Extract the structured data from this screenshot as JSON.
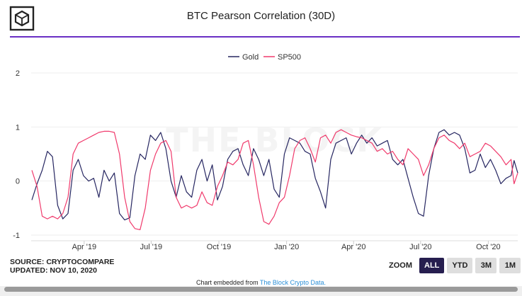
{
  "header": {
    "title": "BTC Pearson Correlation (30D)",
    "logo_icon": "the-block-cube-icon",
    "rule_color": "#6a2fc4"
  },
  "watermark": "THE BLOCK",
  "chart_data": {
    "type": "line",
    "title": "BTC Pearson Correlation (30D)",
    "xlabel": "",
    "ylabel": "",
    "ylim": [
      -1,
      2
    ],
    "yticks": [
      -1,
      0,
      1,
      2
    ],
    "x_range": [
      "2019-01-19",
      "2020-11-10"
    ],
    "xticks": [
      {
        "label": "Apr '19",
        "date": "2019-04-01"
      },
      {
        "label": "Jul '19",
        "date": "2019-07-01"
      },
      {
        "label": "Oct '19",
        "date": "2019-10-01"
      },
      {
        "label": "Jan '20",
        "date": "2020-01-01"
      },
      {
        "label": "Apr '20",
        "date": "2020-04-01"
      },
      {
        "label": "Jul '20",
        "date": "2020-07-01"
      },
      {
        "label": "Oct '20",
        "date": "2020-10-01"
      }
    ],
    "grid": true,
    "legend_position": "top-center",
    "series": [
      {
        "name": "Gold",
        "color": "#262661",
        "points": [
          [
            "2019-01-20",
            -0.35
          ],
          [
            "2019-01-27",
            -0.05
          ],
          [
            "2019-02-03",
            0.2
          ],
          [
            "2019-02-10",
            0.55
          ],
          [
            "2019-02-17",
            0.45
          ],
          [
            "2019-02-24",
            -0.45
          ],
          [
            "2019-03-03",
            -0.7
          ],
          [
            "2019-03-10",
            -0.6
          ],
          [
            "2019-03-17",
            0.2
          ],
          [
            "2019-03-24",
            0.4
          ],
          [
            "2019-03-31",
            0.1
          ],
          [
            "2019-04-07",
            0.0
          ],
          [
            "2019-04-14",
            0.05
          ],
          [
            "2019-04-21",
            -0.3
          ],
          [
            "2019-04-28",
            0.2
          ],
          [
            "2019-05-05",
            0.0
          ],
          [
            "2019-05-12",
            0.15
          ],
          [
            "2019-05-19",
            -0.6
          ],
          [
            "2019-05-26",
            -0.72
          ],
          [
            "2019-06-02",
            -0.68
          ],
          [
            "2019-06-09",
            0.1
          ],
          [
            "2019-06-16",
            0.5
          ],
          [
            "2019-06-23",
            0.4
          ],
          [
            "2019-06-30",
            0.85
          ],
          [
            "2019-07-07",
            0.75
          ],
          [
            "2019-07-14",
            0.9
          ],
          [
            "2019-07-21",
            0.6
          ],
          [
            "2019-07-28",
            0.0
          ],
          [
            "2019-08-04",
            -0.3
          ],
          [
            "2019-08-11",
            0.1
          ],
          [
            "2019-08-18",
            -0.2
          ],
          [
            "2019-08-25",
            -0.3
          ],
          [
            "2019-09-01",
            0.2
          ],
          [
            "2019-09-08",
            0.4
          ],
          [
            "2019-09-15",
            0.0
          ],
          [
            "2019-09-22",
            0.3
          ],
          [
            "2019-09-29",
            -0.35
          ],
          [
            "2019-10-06",
            -0.1
          ],
          [
            "2019-10-13",
            0.4
          ],
          [
            "2019-10-20",
            0.55
          ],
          [
            "2019-10-27",
            0.6
          ],
          [
            "2019-11-03",
            0.3
          ],
          [
            "2019-11-10",
            0.1
          ],
          [
            "2019-11-17",
            0.6
          ],
          [
            "2019-11-24",
            0.4
          ],
          [
            "2019-12-01",
            0.1
          ],
          [
            "2019-12-08",
            0.4
          ],
          [
            "2019-12-15",
            -0.15
          ],
          [
            "2019-12-22",
            -0.3
          ],
          [
            "2019-12-29",
            0.5
          ],
          [
            "2020-01-05",
            0.8
          ],
          [
            "2020-01-12",
            0.75
          ],
          [
            "2020-01-19",
            0.7
          ],
          [
            "2020-01-26",
            0.55
          ],
          [
            "2020-02-02",
            0.5
          ],
          [
            "2020-02-09",
            0.05
          ],
          [
            "2020-02-16",
            -0.2
          ],
          [
            "2020-02-23",
            -0.5
          ],
          [
            "2020-03-01",
            0.4
          ],
          [
            "2020-03-08",
            0.7
          ],
          [
            "2020-03-15",
            0.75
          ],
          [
            "2020-03-22",
            0.8
          ],
          [
            "2020-03-29",
            0.5
          ],
          [
            "2020-04-05",
            0.7
          ],
          [
            "2020-04-12",
            0.85
          ],
          [
            "2020-04-19",
            0.7
          ],
          [
            "2020-04-26",
            0.8
          ],
          [
            "2020-05-03",
            0.65
          ],
          [
            "2020-05-10",
            0.7
          ],
          [
            "2020-05-17",
            0.75
          ],
          [
            "2020-05-24",
            0.4
          ],
          [
            "2020-05-31",
            0.3
          ],
          [
            "2020-06-07",
            0.4
          ],
          [
            "2020-06-14",
            0.05
          ],
          [
            "2020-06-21",
            -0.3
          ],
          [
            "2020-06-28",
            -0.6
          ],
          [
            "2020-07-05",
            -0.65
          ],
          [
            "2020-07-12",
            0.1
          ],
          [
            "2020-07-19",
            0.6
          ],
          [
            "2020-07-26",
            0.9
          ],
          [
            "2020-08-02",
            0.95
          ],
          [
            "2020-08-09",
            0.85
          ],
          [
            "2020-08-16",
            0.9
          ],
          [
            "2020-08-23",
            0.85
          ],
          [
            "2020-08-30",
            0.6
          ],
          [
            "2020-09-06",
            0.15
          ],
          [
            "2020-09-13",
            0.2
          ],
          [
            "2020-09-20",
            0.5
          ],
          [
            "2020-09-27",
            0.25
          ],
          [
            "2020-10-04",
            0.4
          ],
          [
            "2020-10-11",
            0.2
          ],
          [
            "2020-10-18",
            -0.05
          ],
          [
            "2020-10-25",
            0.05
          ],
          [
            "2020-11-01",
            0.1
          ],
          [
            "2020-11-05",
            0.38
          ],
          [
            "2020-11-10",
            0.15
          ]
        ]
      },
      {
        "name": "SP500",
        "color": "#f03a6c",
        "points": [
          [
            "2019-01-20",
            0.2
          ],
          [
            "2019-01-27",
            -0.1
          ],
          [
            "2019-02-03",
            -0.65
          ],
          [
            "2019-02-10",
            -0.7
          ],
          [
            "2019-02-17",
            -0.65
          ],
          [
            "2019-02-24",
            -0.7
          ],
          [
            "2019-03-03",
            -0.6
          ],
          [
            "2019-03-10",
            -0.3
          ],
          [
            "2019-03-17",
            0.5
          ],
          [
            "2019-03-24",
            0.7
          ],
          [
            "2019-03-31",
            0.75
          ],
          [
            "2019-04-07",
            0.8
          ],
          [
            "2019-04-14",
            0.85
          ],
          [
            "2019-04-21",
            0.9
          ],
          [
            "2019-04-28",
            0.92
          ],
          [
            "2019-05-05",
            0.92
          ],
          [
            "2019-05-12",
            0.9
          ],
          [
            "2019-05-19",
            0.5
          ],
          [
            "2019-05-26",
            -0.3
          ],
          [
            "2019-06-02",
            -0.75
          ],
          [
            "2019-06-09",
            -0.88
          ],
          [
            "2019-06-16",
            -0.9
          ],
          [
            "2019-06-23",
            -0.5
          ],
          [
            "2019-06-30",
            0.2
          ],
          [
            "2019-07-07",
            0.5
          ],
          [
            "2019-07-14",
            0.7
          ],
          [
            "2019-07-21",
            0.75
          ],
          [
            "2019-07-28",
            0.55
          ],
          [
            "2019-08-04",
            -0.3
          ],
          [
            "2019-08-11",
            -0.5
          ],
          [
            "2019-08-18",
            -0.45
          ],
          [
            "2019-08-25",
            -0.5
          ],
          [
            "2019-09-01",
            -0.45
          ],
          [
            "2019-09-08",
            -0.2
          ],
          [
            "2019-09-15",
            -0.4
          ],
          [
            "2019-09-22",
            -0.45
          ],
          [
            "2019-09-29",
            -0.1
          ],
          [
            "2019-10-06",
            0.1
          ],
          [
            "2019-10-13",
            0.35
          ],
          [
            "2019-10-20",
            0.3
          ],
          [
            "2019-10-27",
            0.4
          ],
          [
            "2019-11-03",
            0.7
          ],
          [
            "2019-11-10",
            0.75
          ],
          [
            "2019-11-17",
            0.3
          ],
          [
            "2019-11-24",
            -0.3
          ],
          [
            "2019-12-01",
            -0.75
          ],
          [
            "2019-12-08",
            -0.8
          ],
          [
            "2019-12-15",
            -0.65
          ],
          [
            "2019-12-22",
            -0.4
          ],
          [
            "2019-12-29",
            -0.3
          ],
          [
            "2020-01-05",
            0.1
          ],
          [
            "2020-01-12",
            0.6
          ],
          [
            "2020-01-19",
            0.75
          ],
          [
            "2020-01-26",
            0.8
          ],
          [
            "2020-02-02",
            0.6
          ],
          [
            "2020-02-09",
            0.35
          ],
          [
            "2020-02-16",
            0.8
          ],
          [
            "2020-02-23",
            0.85
          ],
          [
            "2020-03-01",
            0.7
          ],
          [
            "2020-03-08",
            0.9
          ],
          [
            "2020-03-15",
            0.95
          ],
          [
            "2020-03-22",
            0.9
          ],
          [
            "2020-03-29",
            0.85
          ],
          [
            "2020-04-05",
            0.82
          ],
          [
            "2020-04-12",
            0.8
          ],
          [
            "2020-04-19",
            0.75
          ],
          [
            "2020-04-26",
            0.7
          ],
          [
            "2020-05-03",
            0.55
          ],
          [
            "2020-05-10",
            0.6
          ],
          [
            "2020-05-17",
            0.5
          ],
          [
            "2020-05-24",
            0.55
          ],
          [
            "2020-05-31",
            0.4
          ],
          [
            "2020-06-07",
            0.3
          ],
          [
            "2020-06-14",
            0.6
          ],
          [
            "2020-06-21",
            0.5
          ],
          [
            "2020-06-28",
            0.4
          ],
          [
            "2020-07-05",
            0.1
          ],
          [
            "2020-07-12",
            0.3
          ],
          [
            "2020-07-19",
            0.6
          ],
          [
            "2020-07-26",
            0.8
          ],
          [
            "2020-08-02",
            0.85
          ],
          [
            "2020-08-09",
            0.75
          ],
          [
            "2020-08-16",
            0.7
          ],
          [
            "2020-08-23",
            0.6
          ],
          [
            "2020-08-30",
            0.7
          ],
          [
            "2020-09-06",
            0.45
          ],
          [
            "2020-09-13",
            0.5
          ],
          [
            "2020-09-20",
            0.55
          ],
          [
            "2020-09-27",
            0.7
          ],
          [
            "2020-10-04",
            0.65
          ],
          [
            "2020-10-11",
            0.55
          ],
          [
            "2020-10-18",
            0.45
          ],
          [
            "2020-10-25",
            0.3
          ],
          [
            "2020-11-01",
            0.4
          ],
          [
            "2020-11-05",
            -0.05
          ],
          [
            "2020-11-10",
            0.15
          ]
        ]
      }
    ]
  },
  "footer": {
    "source": "SOURCE: CRYPTOCOMPARE",
    "updated": "UPDATED: NOV 10, 2020",
    "zoom_label": "ZOOM",
    "zoom_buttons": [
      "ALL",
      "YTD",
      "3M",
      "1M"
    ],
    "zoom_active": "ALL",
    "embed_text": "Chart embedded from ",
    "embed_link": "The Block Crypto Data."
  }
}
